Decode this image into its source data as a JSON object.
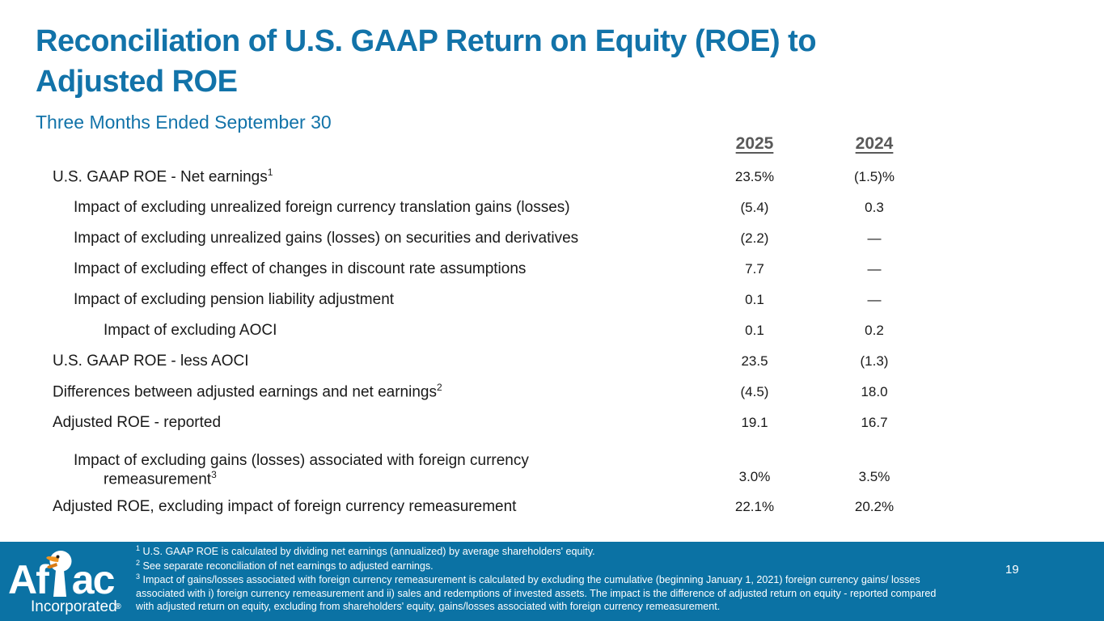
{
  "slide": {
    "title_line1": "Reconciliation of U.S. GAAP Return on Equity (ROE) to",
    "title_line2": "Adjusted ROE",
    "subtitle": "Three Months Ended September 30"
  },
  "colors": {
    "title_blue": "#1273A9",
    "footer_blue": "#0B72A4",
    "column_header_gray": "#595959",
    "body_text": "#191919",
    "duck_beak_orange": "#F0941F"
  },
  "table": {
    "column_headers": [
      "2025",
      "2024"
    ],
    "rows": [
      {
        "label": "U.S. GAAP ROE - Net earnings",
        "sup": "1",
        "indent": 0,
        "v2025": "23.5%",
        "v2024": "(1.5)%"
      },
      {
        "label": "Impact of excluding unrealized foreign currency translation gains (losses)",
        "sup": "",
        "indent": 1,
        "v2025": "(5.4)",
        "v2024": "0.3"
      },
      {
        "label": "Impact of excluding unrealized gains (losses) on securities and derivatives",
        "sup": "",
        "indent": 1,
        "v2025": "(2.2)",
        "v2024": "—"
      },
      {
        "label": "Impact of excluding effect of changes in discount rate assumptions",
        "sup": "",
        "indent": 1,
        "v2025": "7.7",
        "v2024": "—"
      },
      {
        "label": "Impact of excluding pension liability adjustment",
        "sup": "",
        "indent": 1,
        "v2025": "0.1",
        "v2024": "—"
      },
      {
        "label": "Impact of excluding AOCI",
        "sup": "",
        "indent": 2,
        "v2025": "0.1",
        "v2024": "0.2"
      },
      {
        "label": "U.S. GAAP ROE - less AOCI",
        "sup": "",
        "indent": 0,
        "v2025": "23.5",
        "v2024": "(1.3)"
      },
      {
        "label": "Differences between adjusted earnings and net earnings",
        "sup": "2",
        "indent": 0,
        "v2025": "(4.5)",
        "v2024": "18.0"
      },
      {
        "label": "Adjusted ROE - reported",
        "sup": "",
        "indent": 0,
        "v2025": "19.1",
        "v2024": "16.7"
      },
      {
        "label": "Impact of excluding gains (losses) associated with foreign currency",
        "label_line2": "remeasurement",
        "sup": "3",
        "indent": 1,
        "v2025": "3.0%",
        "v2024": "3.5%"
      },
      {
        "label": "Adjusted ROE, excluding impact of foreign currency remeasurement",
        "sup": "",
        "indent": 0,
        "v2025": "22.1%",
        "v2024": "20.2%"
      }
    ]
  },
  "footer": {
    "logo_prefix": "Af",
    "logo_suffix": "ac",
    "logo_registered": "®",
    "logo_sub": "Incorporated",
    "footnotes": [
      {
        "sup": "1",
        "text": "U.S. GAAP ROE is calculated by dividing net earnings (annualized) by average shareholders' equity."
      },
      {
        "sup": "2",
        "text": "See separate reconciliation of net earnings to adjusted earnings."
      },
      {
        "sup": "3",
        "text": "Impact of gains/losses associated with foreign currency remeasurement is calculated by excluding the cumulative (beginning January 1, 2021) foreign currency gains/ losses associated with i) foreign currency remeasurement and ii) sales and redemptions of invested assets. The impact is the difference of adjusted return on equity - reported compared with adjusted return on equity, excluding from shareholders' equity, gains/losses associated with foreign currency remeasurement."
      }
    ],
    "page_number": "19"
  }
}
